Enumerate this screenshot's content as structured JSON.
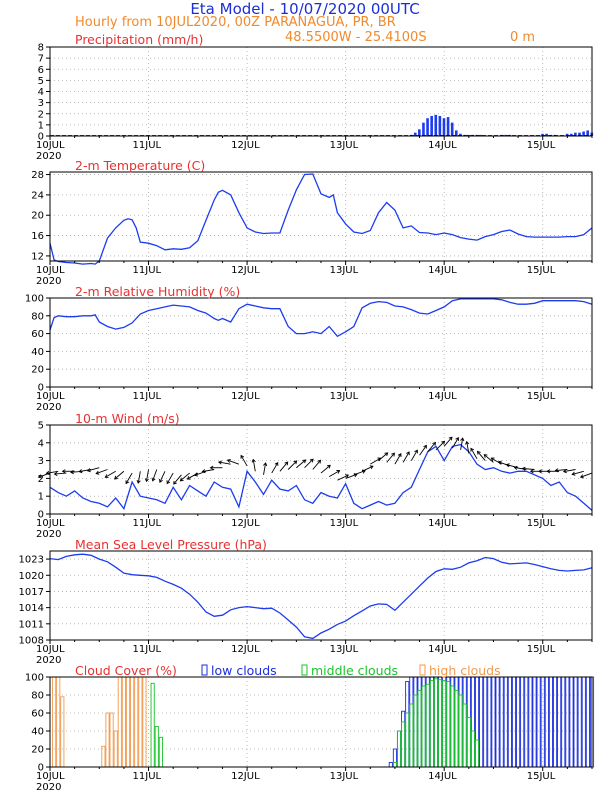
{
  "header": {
    "title": "Eta Model - 10/07/2020 00UTC",
    "subtitle": "Hourly from 10JUL2020, 00Z  PARANAGUA, PR, BR",
    "coords": "48.5500W - 25.4100S",
    "elevation": "0  m"
  },
  "colors": {
    "title": "#1b2fd6",
    "subtitle": "#f08a2e",
    "panel_title": "#e83131",
    "line": "#1d3cf0",
    "low": "#1a2ee0",
    "middle": "#19c42a",
    "high": "#f39a4e",
    "wind_arrow": "#000000"
  },
  "x_axis": {
    "date_labels": [
      "10JUL",
      "11JUL",
      "12JUL",
      "13JUL",
      "14JUL",
      "15JUL"
    ],
    "year_label": "2020",
    "range_hours": [
      0,
      132
    ]
  },
  "chart_data": [
    {
      "name": "precip",
      "type": "bar",
      "title": "Precipitation (mm/h)",
      "ylim": [
        0,
        8
      ],
      "yticks": [
        0,
        1,
        2,
        3,
        4,
        5,
        6,
        7,
        8
      ],
      "x": [
        88,
        89,
        90,
        91,
        92,
        93,
        94,
        95,
        96,
        97,
        98,
        99,
        100,
        101,
        102,
        103,
        104,
        105,
        110,
        111,
        112,
        120,
        121,
        122,
        123,
        126,
        127,
        128,
        129,
        130,
        131,
        132
      ],
      "values": [
        0.1,
        0.3,
        0.6,
        1.2,
        1.6,
        1.8,
        1.9,
        1.8,
        1.6,
        1.7,
        1.2,
        0.5,
        0.2,
        0.1,
        0.1,
        0.1,
        0.1,
        0.1,
        0.1,
        0.1,
        0.1,
        0.2,
        0.2,
        0.1,
        0.1,
        0.2,
        0.2,
        0.3,
        0.3,
        0.4,
        0.5,
        0.3
      ]
    },
    {
      "name": "temp",
      "type": "line",
      "title": "2-m Temperature (C)",
      "ylim": [
        11,
        28.5
      ],
      "yticks": [
        12,
        16,
        20,
        24,
        28
      ],
      "x": [
        0,
        1,
        2,
        4,
        6,
        8,
        10,
        11,
        12,
        14,
        16,
        18,
        19,
        20,
        21,
        22,
        24,
        26,
        28,
        30,
        32,
        34,
        36,
        38,
        40,
        41,
        42,
        44,
        46,
        48,
        50,
        52,
        54,
        56,
        58,
        60,
        62,
        64,
        66,
        68,
        69,
        70,
        72,
        74,
        76,
        78,
        80,
        82,
        84,
        86,
        88,
        90,
        92,
        94,
        96,
        98,
        100,
        102,
        104,
        106,
        108,
        110,
        112,
        114,
        116,
        118,
        120,
        122,
        124,
        126,
        128,
        130,
        132
      ],
      "values": [
        14.5,
        11.2,
        10.9,
        10.7,
        10.6,
        10.4,
        10.5,
        10.4,
        11.0,
        15.5,
        17.5,
        19,
        19.3,
        19.1,
        17.5,
        14.7,
        14.5,
        14,
        13.2,
        13.4,
        13.3,
        13.6,
        15,
        19,
        23,
        24.5,
        24.9,
        24,
        20.5,
        17.5,
        16.7,
        16.4,
        16.5,
        16.5,
        21,
        25,
        28,
        28.1,
        24.2,
        23.5,
        24,
        20.5,
        18.3,
        16.7,
        16.4,
        17,
        20.5,
        22.5,
        21,
        17.5,
        17.9,
        16.6,
        16.5,
        16.2,
        16.5,
        16.2,
        15.6,
        15.3,
        15.1,
        15.8,
        16.2,
        16.8,
        17.1,
        16.3,
        15.8,
        15.7,
        15.7,
        15.7,
        15.7,
        15.8,
        15.8,
        16.2,
        17.5
      ]
    },
    {
      "name": "rh",
      "type": "line",
      "title": "2-m Relative Humidity (%)",
      "ylim": [
        0,
        100
      ],
      "yticks": [
        0,
        20,
        40,
        60,
        80,
        100
      ],
      "x": [
        0,
        1,
        2,
        4,
        6,
        8,
        10,
        11,
        12,
        14,
        16,
        18,
        20,
        22,
        24,
        26,
        28,
        30,
        32,
        34,
        36,
        38,
        40,
        41,
        42,
        44,
        46,
        48,
        50,
        52,
        54,
        56,
        58,
        60,
        62,
        64,
        66,
        68,
        70,
        72,
        74,
        76,
        78,
        80,
        82,
        84,
        86,
        88,
        90,
        92,
        94,
        96,
        98,
        100,
        102,
        104,
        106,
        108,
        110,
        112,
        114,
        116,
        118,
        120,
        122,
        124,
        126,
        128,
        130,
        132
      ],
      "values": [
        64,
        78,
        80,
        79,
        79,
        80,
        80,
        81,
        73,
        68,
        65,
        67,
        72,
        82,
        86,
        88,
        90,
        92,
        91,
        90,
        86,
        83,
        77,
        75,
        77,
        73,
        88,
        93,
        91,
        89,
        88,
        88,
        68,
        60,
        60,
        62,
        60,
        68,
        57,
        62,
        68,
        89,
        94,
        96,
        95,
        91,
        90,
        87,
        83,
        82,
        86,
        90,
        97,
        99,
        99,
        99,
        99,
        99,
        98,
        95,
        93,
        93,
        94,
        97,
        97,
        97,
        97,
        97,
        96,
        93
      ]
    },
    {
      "name": "wind",
      "type": "line",
      "title": "10-m Wind (m/s)",
      "ylim": [
        0,
        5
      ],
      "yticks": [
        0,
        1,
        2,
        3,
        4,
        5
      ],
      "x": [
        0,
        2,
        4,
        6,
        8,
        10,
        12,
        14,
        16,
        18,
        20,
        22,
        24,
        26,
        28,
        30,
        32,
        34,
        36,
        38,
        40,
        42,
        44,
        46,
        48,
        50,
        52,
        54,
        56,
        58,
        60,
        62,
        64,
        66,
        68,
        70,
        72,
        74,
        76,
        78,
        80,
        82,
        84,
        86,
        88,
        90,
        92,
        94,
        96,
        98,
        100,
        102,
        104,
        106,
        108,
        110,
        112,
        114,
        116,
        118,
        120,
        122,
        124,
        126,
        128,
        130,
        132
      ],
      "values": [
        1.5,
        1.2,
        1.0,
        1.3,
        0.9,
        0.7,
        0.6,
        0.4,
        0.9,
        0.3,
        1.8,
        1.0,
        0.9,
        0.8,
        0.6,
        1.5,
        0.8,
        1.6,
        1.3,
        1.0,
        1.8,
        1.5,
        1.4,
        0.4,
        2.4,
        1.8,
        1.1,
        1.9,
        1.4,
        1.3,
        1.6,
        0.8,
        0.6,
        1.2,
        1.0,
        0.9,
        1.7,
        0.6,
        0.3,
        0.5,
        0.7,
        0.5,
        0.6,
        1.2,
        1.5,
        2.5,
        3.5,
        3.8,
        3.0,
        3.8,
        3.9,
        3.5,
        2.8,
        2.5,
        2.6,
        2.4,
        2.3,
        2.4,
        2.4,
        2.2,
        2.0,
        1.6,
        1.8,
        1.2,
        1.0,
        0.6,
        0.2
      ],
      "arrow_speed": [
        2.3,
        2.4,
        2.3,
        2.4,
        2.4,
        2.5,
        2.6,
        2.5,
        2.4,
        2.4,
        2.3,
        2.4,
        2.5,
        2.5,
        2.4,
        2.3,
        2.2,
        2.3,
        2.3,
        2.4,
        2.5,
        2.6,
        2.8,
        2.8,
        2.7,
        2.4,
        2.2,
        2.3,
        2.4,
        2.5,
        2.6,
        2.6,
        2.5,
        2.3,
        2.1,
        1.9,
        2.0,
        2.2,
        2.4,
        2.8,
        3.0,
        2.9,
        2.8,
        2.9,
        3.0,
        3.3,
        3.5,
        3.6,
        3.8,
        3.7,
        3.6,
        3.4,
        3.1,
        3.0,
        2.9,
        2.8,
        2.7,
        2.6,
        2.5,
        2.5,
        2.4,
        2.4,
        2.4,
        2.5,
        2.5,
        2.4,
        2.3
      ],
      "arrow_dir": [
        -160,
        -170,
        -175,
        -180,
        -175,
        -170,
        -165,
        -160,
        -150,
        -140,
        -120,
        -100,
        -100,
        -110,
        -115,
        -120,
        -130,
        -140,
        -150,
        -160,
        -170,
        -180,
        170,
        160,
        120,
        100,
        80,
        60,
        50,
        45,
        40,
        45,
        50,
        40,
        30,
        25,
        20,
        20,
        25,
        30,
        40,
        50,
        60,
        60,
        60,
        55,
        50,
        45,
        50,
        60,
        80,
        100,
        120,
        130,
        140,
        150,
        160,
        165,
        170,
        175,
        180,
        180,
        180,
        -175,
        -170,
        -165,
        -160
      ]
    },
    {
      "name": "pres",
      "type": "line",
      "title": "Mean Sea Level Pressure (hPa)",
      "ylim": [
        1008,
        1024.5
      ],
      "yticks": [
        1008,
        1011,
        1014,
        1017,
        1020,
        1023
      ],
      "x": [
        0,
        2,
        4,
        6,
        8,
        10,
        12,
        14,
        16,
        18,
        20,
        22,
        24,
        26,
        28,
        30,
        32,
        34,
        36,
        38,
        40,
        42,
        44,
        46,
        48,
        50,
        52,
        54,
        56,
        58,
        60,
        62,
        64,
        66,
        68,
        70,
        72,
        74,
        76,
        78,
        80,
        82,
        84,
        86,
        88,
        90,
        92,
        94,
        96,
        98,
        100,
        102,
        104,
        106,
        108,
        110,
        112,
        114,
        116,
        118,
        120,
        122,
        124,
        126,
        128,
        130,
        132
      ],
      "values": [
        1023.1,
        1022.9,
        1023.5,
        1023.8,
        1023.9,
        1023.7,
        1023.0,
        1022.5,
        1021.5,
        1020.4,
        1020.1,
        1020.0,
        1019.9,
        1019.6,
        1018.9,
        1018.3,
        1017.6,
        1016.5,
        1015.0,
        1013.2,
        1012.4,
        1012.6,
        1013.6,
        1014.0,
        1014.2,
        1014.0,
        1013.8,
        1013.9,
        1013.0,
        1011.7,
        1010.4,
        1008.6,
        1008.3,
        1009.3,
        1010.0,
        1010.9,
        1011.5,
        1012.5,
        1013.4,
        1014.3,
        1014.7,
        1014.6,
        1013.5,
        1015.0,
        1016.5,
        1018.0,
        1019.5,
        1020.7,
        1021.2,
        1021.1,
        1021.5,
        1022.3,
        1022.7,
        1023.3,
        1023.1,
        1022.4,
        1022.1,
        1022.2,
        1022.3,
        1022.0,
        1021.6,
        1021.2,
        1020.9,
        1020.8,
        1020.9,
        1021.0,
        1021.4
      ]
    },
    {
      "name": "cloud",
      "type": "bar",
      "title": "Cloud Cover (%)",
      "ylim": [
        0,
        100
      ],
      "yticks": [
        0,
        20,
        40,
        60,
        80,
        100
      ],
      "series": [
        {
          "name": "low clouds",
          "x": [
            83,
            84,
            85,
            86,
            87,
            88,
            89,
            90,
            91,
            92,
            93,
            94,
            95,
            96,
            97,
            98,
            99,
            100,
            101,
            102,
            103,
            104,
            105,
            106,
            107,
            108,
            109,
            110,
            111,
            112,
            113,
            114,
            115,
            116,
            117,
            118,
            119,
            120,
            121,
            122,
            123,
            124,
            125,
            126,
            127,
            128,
            129,
            130,
            131,
            132
          ],
          "values": [
            5,
            20,
            40,
            62,
            95,
            100,
            100,
            100,
            100,
            100,
            100,
            100,
            100,
            100,
            100,
            100,
            100,
            100,
            100,
            100,
            100,
            100,
            100,
            100,
            100,
            100,
            100,
            100,
            100,
            100,
            100,
            100,
            100,
            100,
            100,
            100,
            100,
            100,
            100,
            100,
            100,
            100,
            100,
            100,
            100,
            100,
            100,
            100,
            100,
            100
          ]
        },
        {
          "name": "middle clouds",
          "x": [
            25,
            26,
            27,
            84,
            85,
            86,
            87,
            88,
            89,
            90,
            91,
            92,
            93,
            94,
            95,
            96,
            97,
            98,
            99,
            100,
            101,
            102,
            103,
            104
          ],
          "values": [
            93,
            45,
            33,
            5,
            40,
            50,
            60,
            70,
            80,
            85,
            90,
            92,
            96,
            98,
            97,
            96,
            95,
            90,
            85,
            80,
            70,
            55,
            40,
            30
          ]
        },
        {
          "name": "high clouds",
          "x": [
            1,
            2,
            3,
            13,
            14,
            15,
            16,
            17,
            18,
            19,
            20,
            21,
            22,
            23
          ],
          "values": [
            100,
            100,
            78,
            23,
            60,
            60,
            40,
            100,
            100,
            100,
            100,
            100,
            100,
            100
          ]
        }
      ]
    }
  ]
}
